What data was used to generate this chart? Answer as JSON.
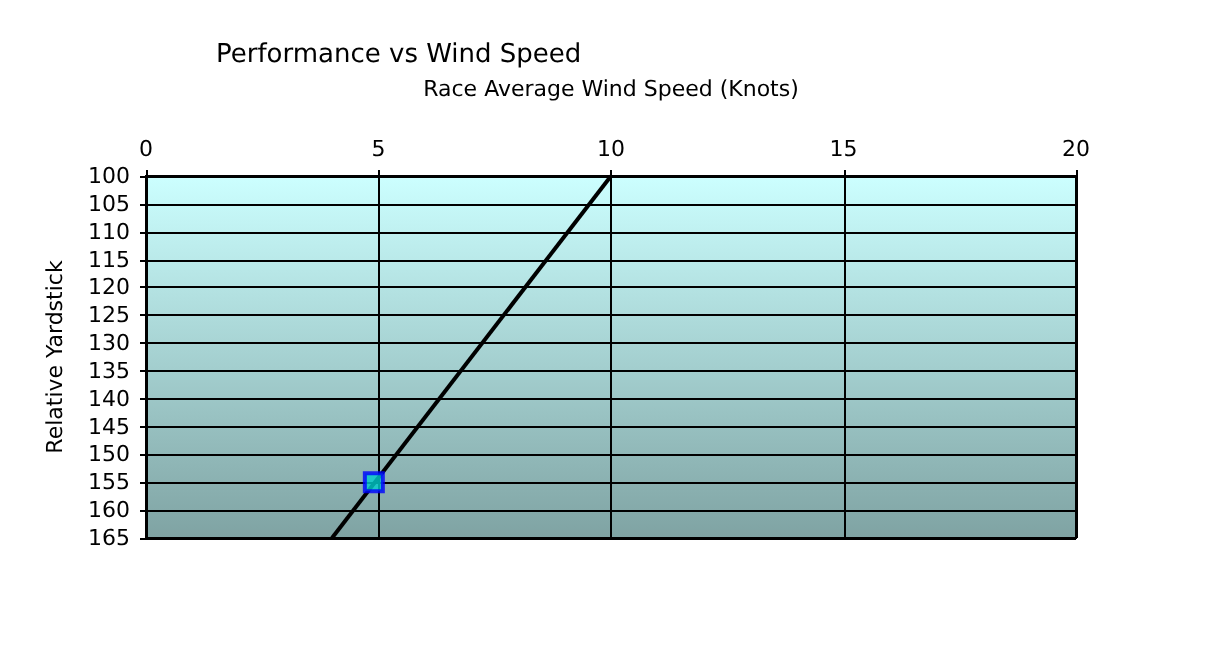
{
  "chart_data": {
    "type": "scatter",
    "title": "Performance vs Wind Speed",
    "xlabel": "Race Average Wind Speed (Knots)",
    "ylabel": "Relative Yardstick",
    "series": [
      {
        "type": "line",
        "color": "#000000",
        "x": [
          4,
          10
        ],
        "values": [
          165,
          100
        ],
        "marker": "none"
      },
      {
        "color": "#0000ff",
        "x": [
          4.9
        ],
        "values": [
          155
        ],
        "marker": "square"
      }
    ],
    "xlim": [
      0,
      20
    ],
    "xticks": [
      0,
      5,
      10,
      15,
      20
    ],
    "ylim": [
      165,
      100
    ],
    "yticks": [
      100,
      105,
      110,
      115,
      120,
      125,
      130,
      135,
      140,
      145,
      150,
      155,
      160,
      165
    ],
    "grid": true
  }
}
